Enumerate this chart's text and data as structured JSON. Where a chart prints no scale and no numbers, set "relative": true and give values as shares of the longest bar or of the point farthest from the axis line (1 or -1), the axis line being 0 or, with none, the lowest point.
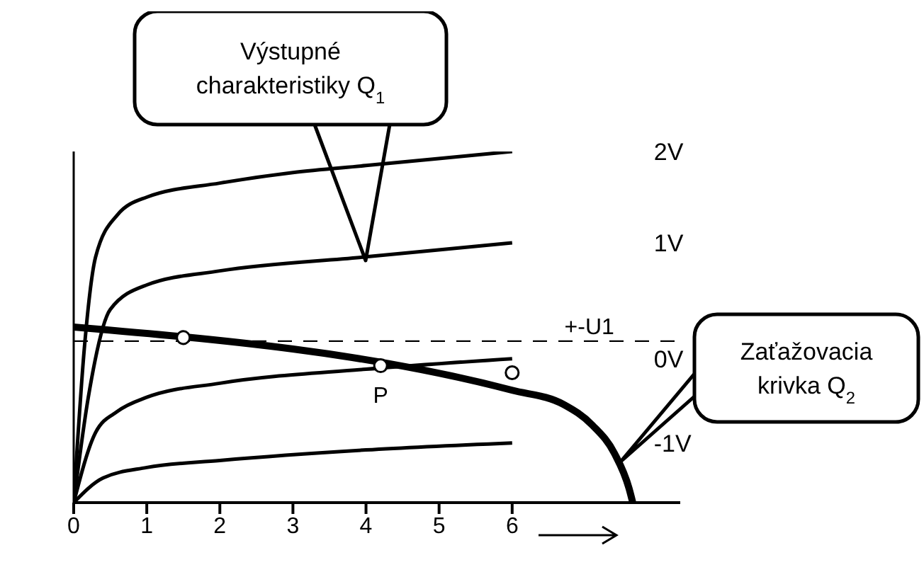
{
  "chart_data": {
    "type": "line",
    "relative": true,
    "xlim": [
      0,
      8.3
    ],
    "xticks": [
      0,
      1,
      2,
      3,
      4,
      5,
      6
    ],
    "series": [
      {
        "name": "2V",
        "color": "#000000",
        "x": [
          0,
          0.15,
          0.3,
          0.6,
          1,
          2,
          3,
          4,
          6
        ],
        "values": [
          0,
          0.45,
          0.7,
          0.82,
          0.87,
          0.91,
          0.94,
          0.96,
          1
        ]
      },
      {
        "name": "1V",
        "color": "#000000",
        "x": [
          0,
          0.2,
          0.5,
          1,
          2,
          4,
          6
        ],
        "values": [
          0,
          0.3,
          0.55,
          0.62,
          0.66,
          0.7,
          0.74
        ]
      },
      {
        "name": "0V",
        "color": "#000000",
        "x": [
          0,
          0.3,
          0.6,
          1,
          2,
          4,
          6
        ],
        "values": [
          0,
          0.2,
          0.26,
          0.3,
          0.34,
          0.38,
          0.41
        ]
      },
      {
        "name": "-1V",
        "color": "#000000",
        "x": [
          0,
          0.4,
          1,
          2,
          4,
          6
        ],
        "values": [
          0,
          0.07,
          0.1,
          0.12,
          0.15,
          0.17
        ]
      },
      {
        "color": "#000000",
        "x": [
          0,
          6,
          6.7,
          7.1,
          7.4,
          7.6,
          7.65
        ],
        "values": [
          0.5,
          0.32,
          0.28,
          0.22,
          0.14,
          0.04,
          0
        ]
      },
      {
        "type": "scatter",
        "color": "#000000",
        "x": [
          1.5,
          4.2,
          6
        ],
        "values": [
          0.47,
          0.39,
          0.37
        ]
      }
    ],
    "ref_lines": [
      {
        "axis": "y",
        "value": 0.46,
        "label": "+-U1",
        "line_style": "dashed"
      }
    ],
    "annotations": [
      "Výstupné charakteristiky Q$_{1}$",
      "Zaťažovacia krivka Q$_{2}$",
      {
        "text": "P",
        "x": 4.2,
        "y": 0.39
      }
    ],
    "grid": false,
    "legend": false,
    "line_style": "solid"
  }
}
